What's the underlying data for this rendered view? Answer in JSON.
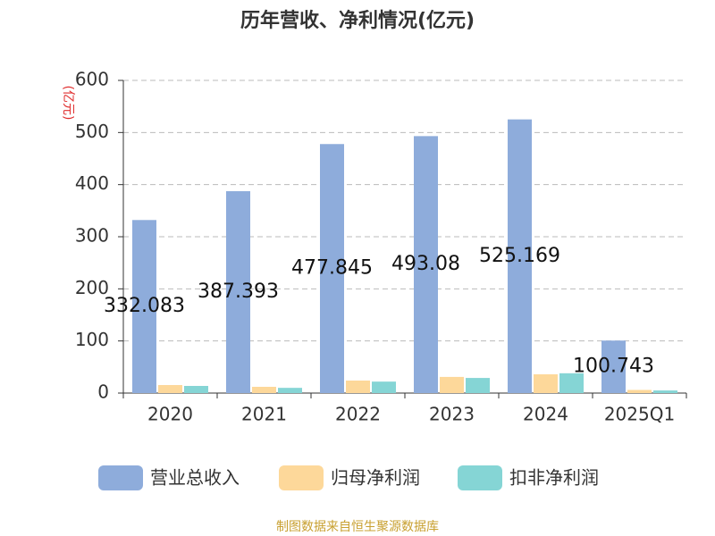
{
  "chart_data": {
    "type": "bar",
    "title": "历年营收、净利情况(亿元)",
    "y_label": "(亿元)",
    "source": "制图数据来自恒生聚源数据库",
    "categories": [
      "2020",
      "2021",
      "2022",
      "2023",
      "2024",
      "2025Q1"
    ],
    "series": [
      {
        "name": "营业总收入",
        "color": "#8eacdb",
        "values": [
          332.083,
          387.393,
          477.845,
          493.08,
          525.169,
          100.743
        ]
      },
      {
        "name": "归母净利润",
        "color": "#fdd89a",
        "values": [
          15.4,
          12,
          24,
          31,
          36,
          6
        ]
      },
      {
        "name": "扣非净利润",
        "color": "#85d5d5",
        "values": [
          13.7,
          10,
          22,
          29,
          38,
          5
        ]
      }
    ],
    "ylim": [
      0,
      600
    ],
    "yticks": [
      0,
      100,
      200,
      300,
      400,
      500,
      600
    ],
    "grid": true
  }
}
